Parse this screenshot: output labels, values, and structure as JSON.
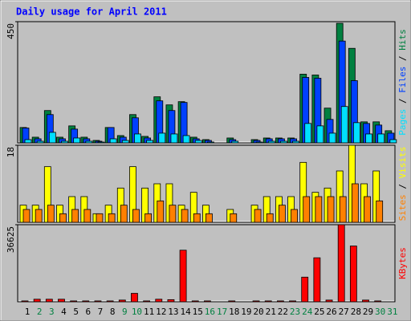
{
  "chart_data": [
    {
      "type": "bar",
      "title": "Daily usage for April 2011",
      "categories": [
        "1",
        "2",
        "3",
        "4",
        "5",
        "6",
        "7",
        "8",
        "9",
        "10",
        "11",
        "12",
        "13",
        "14",
        "15",
        "16",
        "17",
        "18",
        "19",
        "20",
        "21",
        "22",
        "23",
        "24",
        "25",
        "26",
        "27",
        "28",
        "29",
        "30",
        "31"
      ],
      "category_colors": [
        "#000000",
        "#008040",
        "#008040",
        "#000000",
        "#000000",
        "#000000",
        "#000000",
        "#000000",
        "#008040",
        "#008040",
        "#000000",
        "#000000",
        "#000000",
        "#000000",
        "#000000",
        "#008040",
        "#008040",
        "#000000",
        "#000000",
        "#000000",
        "#000000",
        "#000000",
        "#008040",
        "#008040",
        "#000000",
        "#000000",
        "#000000",
        "#000000",
        "#000000",
        "#008040",
        "#008040"
      ],
      "ylim": [
        0,
        450
      ],
      "yticks": [
        450
      ],
      "series": [
        {
          "name": "Hits",
          "color": "#008040",
          "values": [
            57,
            21,
            120,
            21,
            63,
            21,
            9,
            57,
            27,
            105,
            24,
            171,
            141,
            153,
            21,
            12,
            0,
            18,
            0,
            12,
            18,
            18,
            18,
            255,
            252,
            129,
            444,
            351,
            78,
            78,
            45
          ]
        },
        {
          "name": "Files",
          "color": "#0040ff",
          "values": [
            55,
            15,
            105,
            15,
            51,
            15,
            6,
            57,
            21,
            93,
            18,
            156,
            120,
            150,
            15,
            9,
            0,
            12,
            0,
            9,
            15,
            15,
            15,
            243,
            240,
            87,
            378,
            231,
            72,
            66,
            36
          ]
        },
        {
          "name": "Pages",
          "color": "#00e0ff",
          "values": [
            12,
            6,
            39,
            6,
            18,
            6,
            3,
            15,
            9,
            33,
            9,
            36,
            33,
            27,
            9,
            3,
            0,
            6,
            0,
            3,
            6,
            6,
            6,
            72,
            63,
            36,
            135,
            75,
            33,
            33,
            12
          ]
        }
      ]
    },
    {
      "type": "bar",
      "ylim": [
        0,
        18
      ],
      "yticks": [
        18
      ],
      "series": [
        {
          "name": "Visits",
          "color": "#ffff00",
          "values": [
            4,
            4,
            13,
            4,
            6,
            6,
            2,
            4,
            8,
            13,
            8,
            9,
            9,
            4,
            7,
            4,
            0,
            3,
            0,
            4,
            6,
            6,
            6,
            14,
            7,
            8,
            12,
            18,
            9,
            12,
            0
          ]
        },
        {
          "name": "Sites",
          "color": "#ff8000",
          "values": [
            3,
            3,
            4,
            2,
            3,
            3,
            2,
            2,
            4,
            3,
            2,
            5,
            4,
            3,
            2,
            2,
            0,
            2,
            0,
            3,
            2,
            4,
            3,
            6,
            6,
            6,
            6,
            9,
            6,
            5,
            0
          ]
        }
      ]
    },
    {
      "type": "bar",
      "ylim": [
        0,
        36625
      ],
      "yticks": [
        36625
      ],
      "series": [
        {
          "name": "KBytes",
          "color": "#ff0000",
          "values": [
            400,
            1200,
            1200,
            1200,
            400,
            400,
            400,
            400,
            800,
            4000,
            400,
            1200,
            1000,
            24500,
            400,
            400,
            0,
            400,
            0,
            400,
            400,
            400,
            400,
            11700,
            20900,
            800,
            36625,
            26500,
            800,
            400,
            0
          ]
        }
      ]
    }
  ]
}
